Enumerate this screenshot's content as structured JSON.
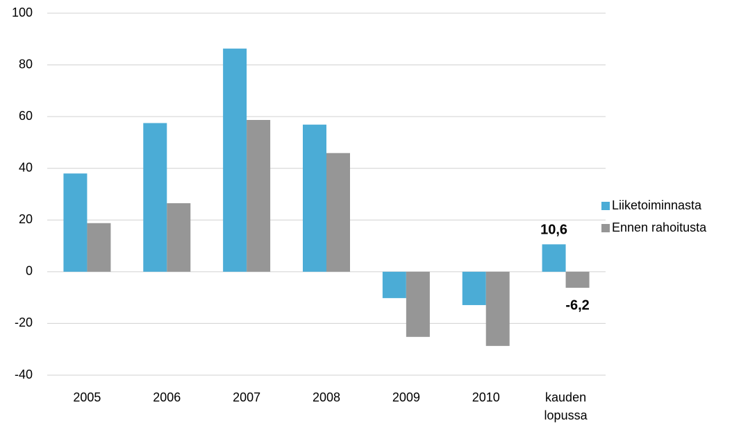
{
  "chart_data": {
    "type": "bar",
    "categories": [
      "2005",
      "2006",
      "2007",
      "2008",
      "2009",
      "2010",
      "kauden lopussa"
    ],
    "series": [
      {
        "name": "Liiketoiminnasta",
        "color": "#4bacd6",
        "values": [
          38,
          57.5,
          86.3,
          56.9,
          -10.2,
          -12.9,
          10.6
        ],
        "value_labels": [
          null,
          null,
          null,
          null,
          null,
          null,
          "10,6"
        ]
      },
      {
        "name": "Ennen rahoitusta",
        "color": "#969696",
        "values": [
          18.8,
          26.5,
          58.7,
          45.9,
          -25.2,
          -28.7,
          -6.2
        ],
        "value_labels": [
          null,
          null,
          null,
          null,
          null,
          null,
          "-6,2"
        ]
      }
    ],
    "ylim": [
      -40,
      100
    ],
    "yticks": [
      -40,
      -20,
      0,
      20,
      40,
      60,
      80,
      100
    ],
    "grid": true,
    "legend": "right"
  }
}
